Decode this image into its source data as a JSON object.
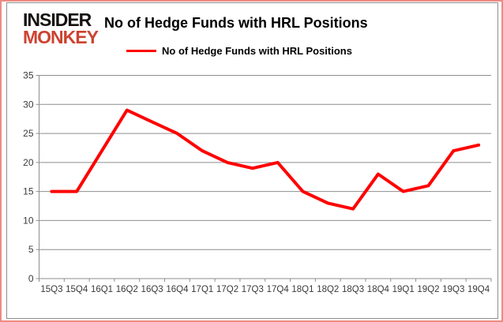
{
  "logo": {
    "line1": "INSIDER",
    "line2": "MONKEY"
  },
  "header": {
    "title": "No of Hedge Funds with HRL Positions"
  },
  "legend": {
    "label": "No of Hedge Funds with HRL Positions"
  },
  "chart_data": {
    "type": "line",
    "title": "No of Hedge Funds with HRL Positions",
    "series_name": "No of Hedge Funds with HRL Positions",
    "categories": [
      "15Q3",
      "15Q4",
      "16Q1",
      "16Q2",
      "16Q3",
      "16Q4",
      "17Q1",
      "17Q2",
      "17Q3",
      "17Q4",
      "18Q1",
      "18Q2",
      "18Q3",
      "18Q4",
      "19Q1",
      "19Q2",
      "19Q3",
      "19Q4"
    ],
    "values": [
      15,
      15,
      22,
      29,
      27,
      25,
      22,
      20,
      19,
      20,
      15,
      13,
      12,
      18,
      15,
      16,
      22,
      23
    ],
    "xlabel": "",
    "ylabel": "",
    "ylim": [
      0,
      35
    ],
    "yticks": [
      0,
      5,
      10,
      15,
      20,
      25,
      30,
      35
    ],
    "grid": true,
    "legend_position": "top"
  },
  "colors": {
    "line": "#ff0000",
    "logo_red": "#cd4331",
    "outer_border": "#ee8b82",
    "frame_border": "#8f8f8f",
    "gridline": "#8e8e8e",
    "tick_text": "#3a3a3a"
  }
}
